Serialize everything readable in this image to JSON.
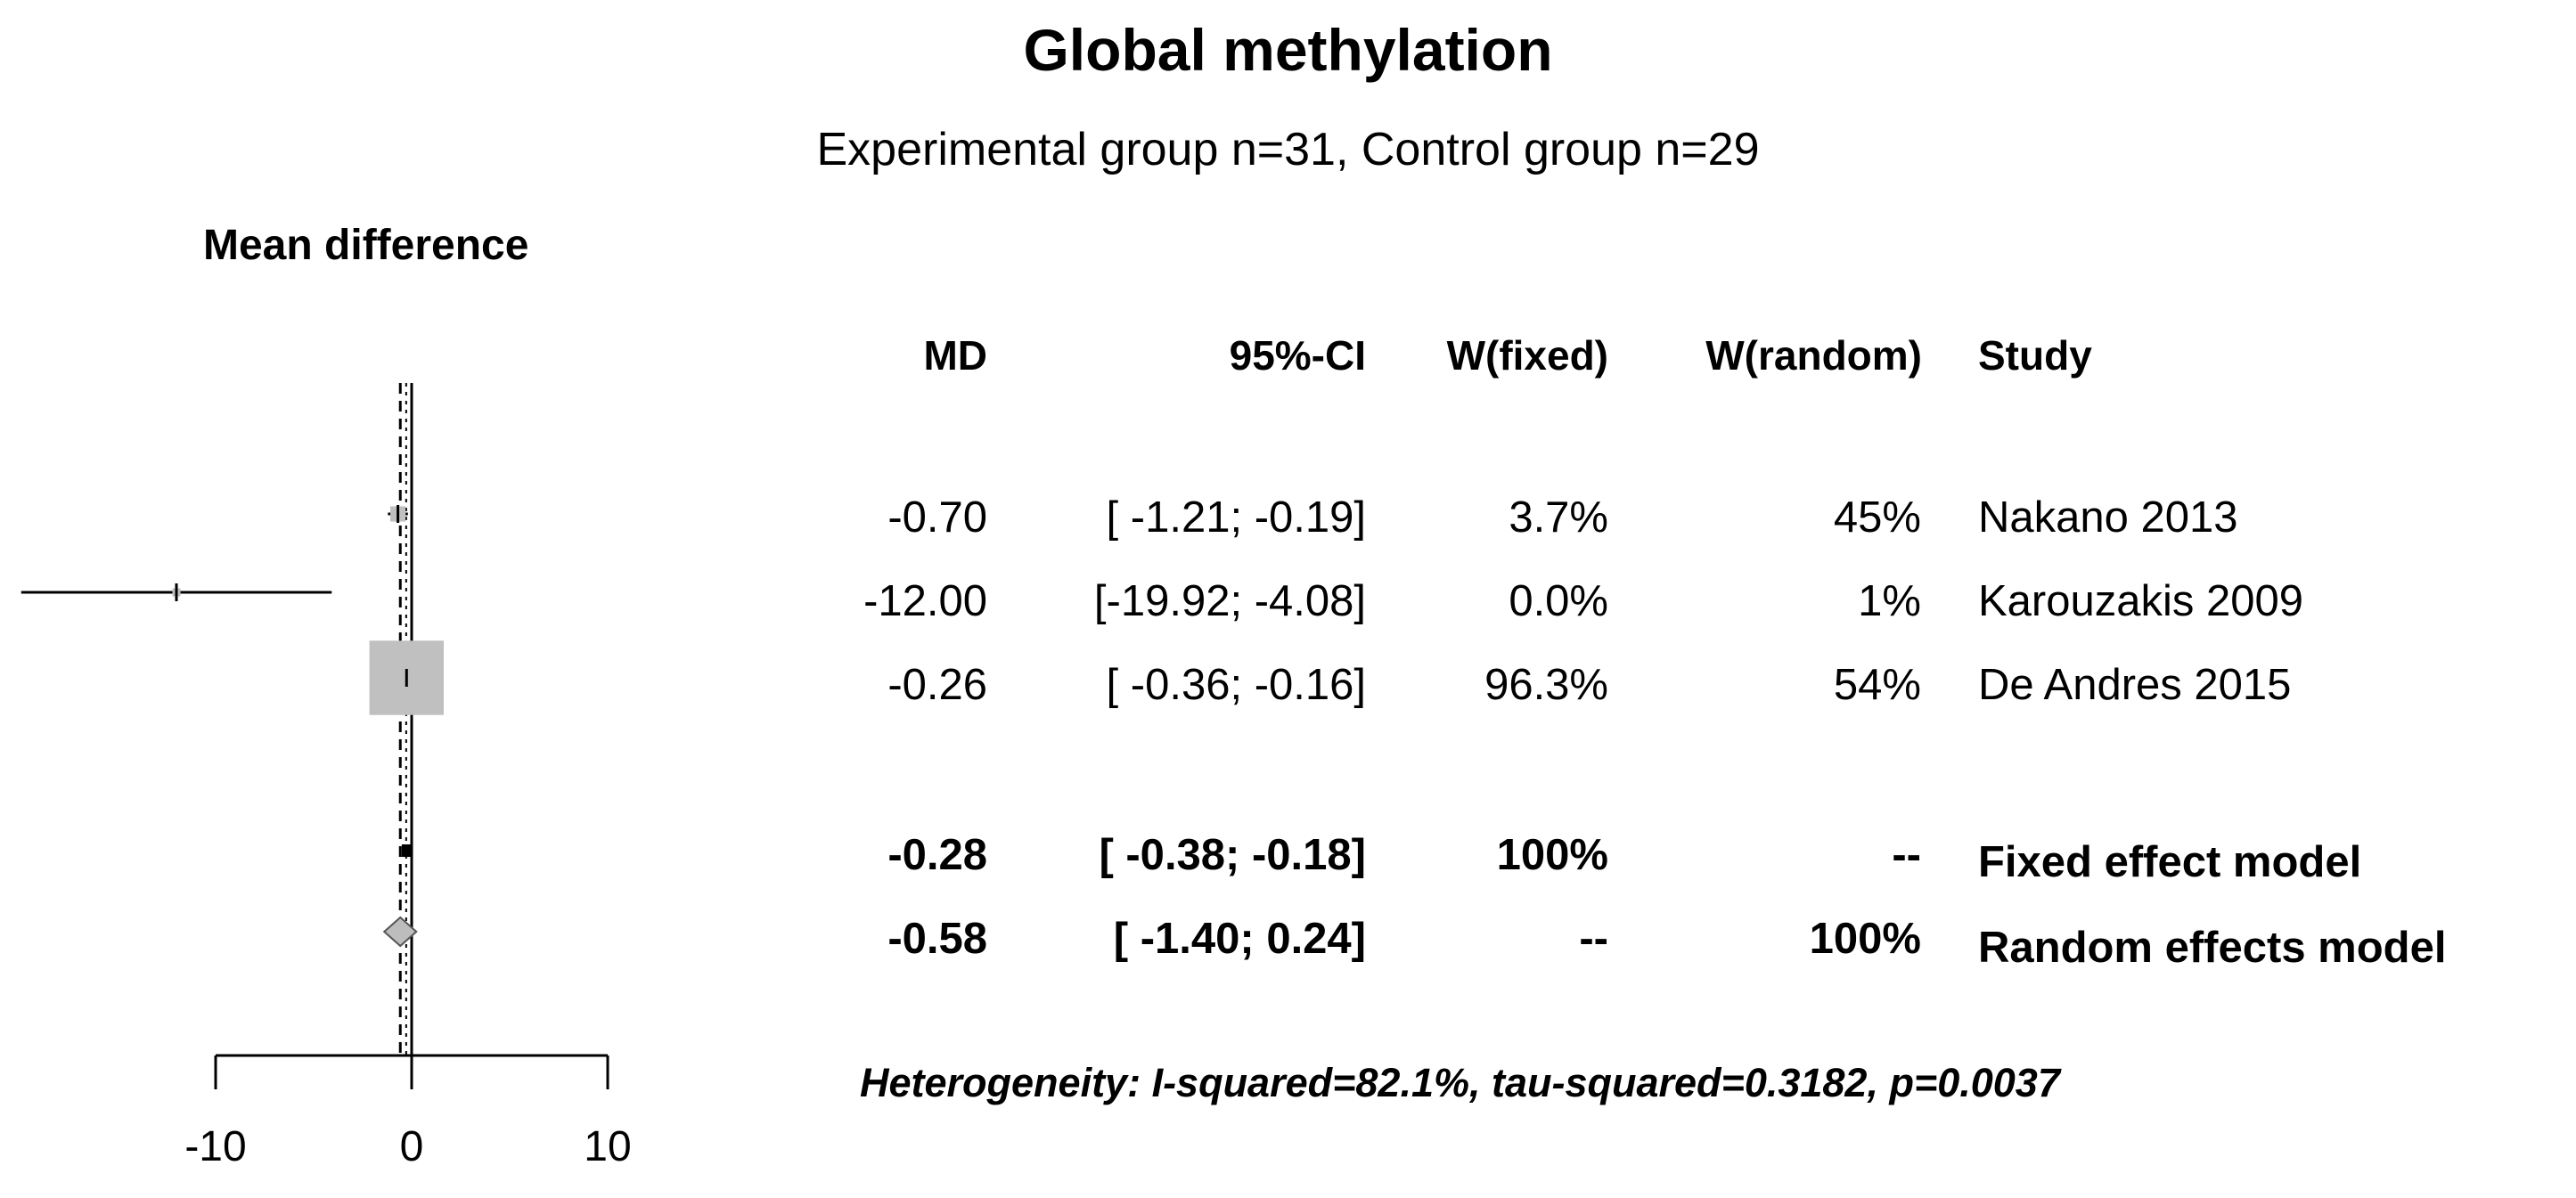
{
  "chart_data": {
    "type": "forest",
    "title": "Global methylation",
    "subtitle": "Experimental group n=31, Control group n=29",
    "xlabel": "Mean difference",
    "xlim": [
      -10,
      10
    ],
    "xticks": [
      "-10",
      "0",
      "10"
    ],
    "reference_line": 0,
    "columns": {
      "md": "MD",
      "ci": "95%-CI",
      "w_fixed": "W(fixed)",
      "w_random": "W(random)",
      "study": "Study"
    },
    "studies": [
      {
        "name": "Nakano 2013",
        "md": -0.7,
        "lower": -1.21,
        "upper": -0.19,
        "md_text": "-0.70",
        "ci_text": "[ -1.21; -0.19]",
        "w_fixed": "3.7%",
        "w_random": "45%",
        "weight": 3.7
      },
      {
        "name": "Karouzakis 2009",
        "md": -12.0,
        "lower": -19.92,
        "upper": -4.08,
        "md_text": "-12.00",
        "ci_text": "[-19.92; -4.08]",
        "w_fixed": "0.0%",
        "w_random": "1%",
        "weight": 0.0
      },
      {
        "name": "De Andres 2015",
        "md": -0.26,
        "lower": -0.36,
        "upper": -0.16,
        "md_text": "-0.26",
        "ci_text": "[ -0.36; -0.16]",
        "w_fixed": "96.3%",
        "w_random": "54%",
        "weight": 96.3
      }
    ],
    "summary": [
      {
        "name": "Fixed effect model",
        "md": -0.28,
        "lower": -0.38,
        "upper": -0.18,
        "md_text": "-0.28",
        "ci_text": "[ -0.38; -0.18]",
        "w_fixed": "100%",
        "w_random": "--"
      },
      {
        "name": "Random effects model",
        "md": -0.58,
        "lower": -1.4,
        "upper": 0.24,
        "md_text": "-0.58",
        "ci_text": "[ -1.40;  0.24]",
        "w_fixed": "--",
        "w_random": "100%"
      }
    ],
    "heterogeneity": "Heterogeneity: I-squared=82.1%, tau-squared=0.3182, p=0.0037",
    "colors": {
      "line": "#000000",
      "box": "#c0c0c0",
      "diamond": "#bdbdbd"
    }
  }
}
